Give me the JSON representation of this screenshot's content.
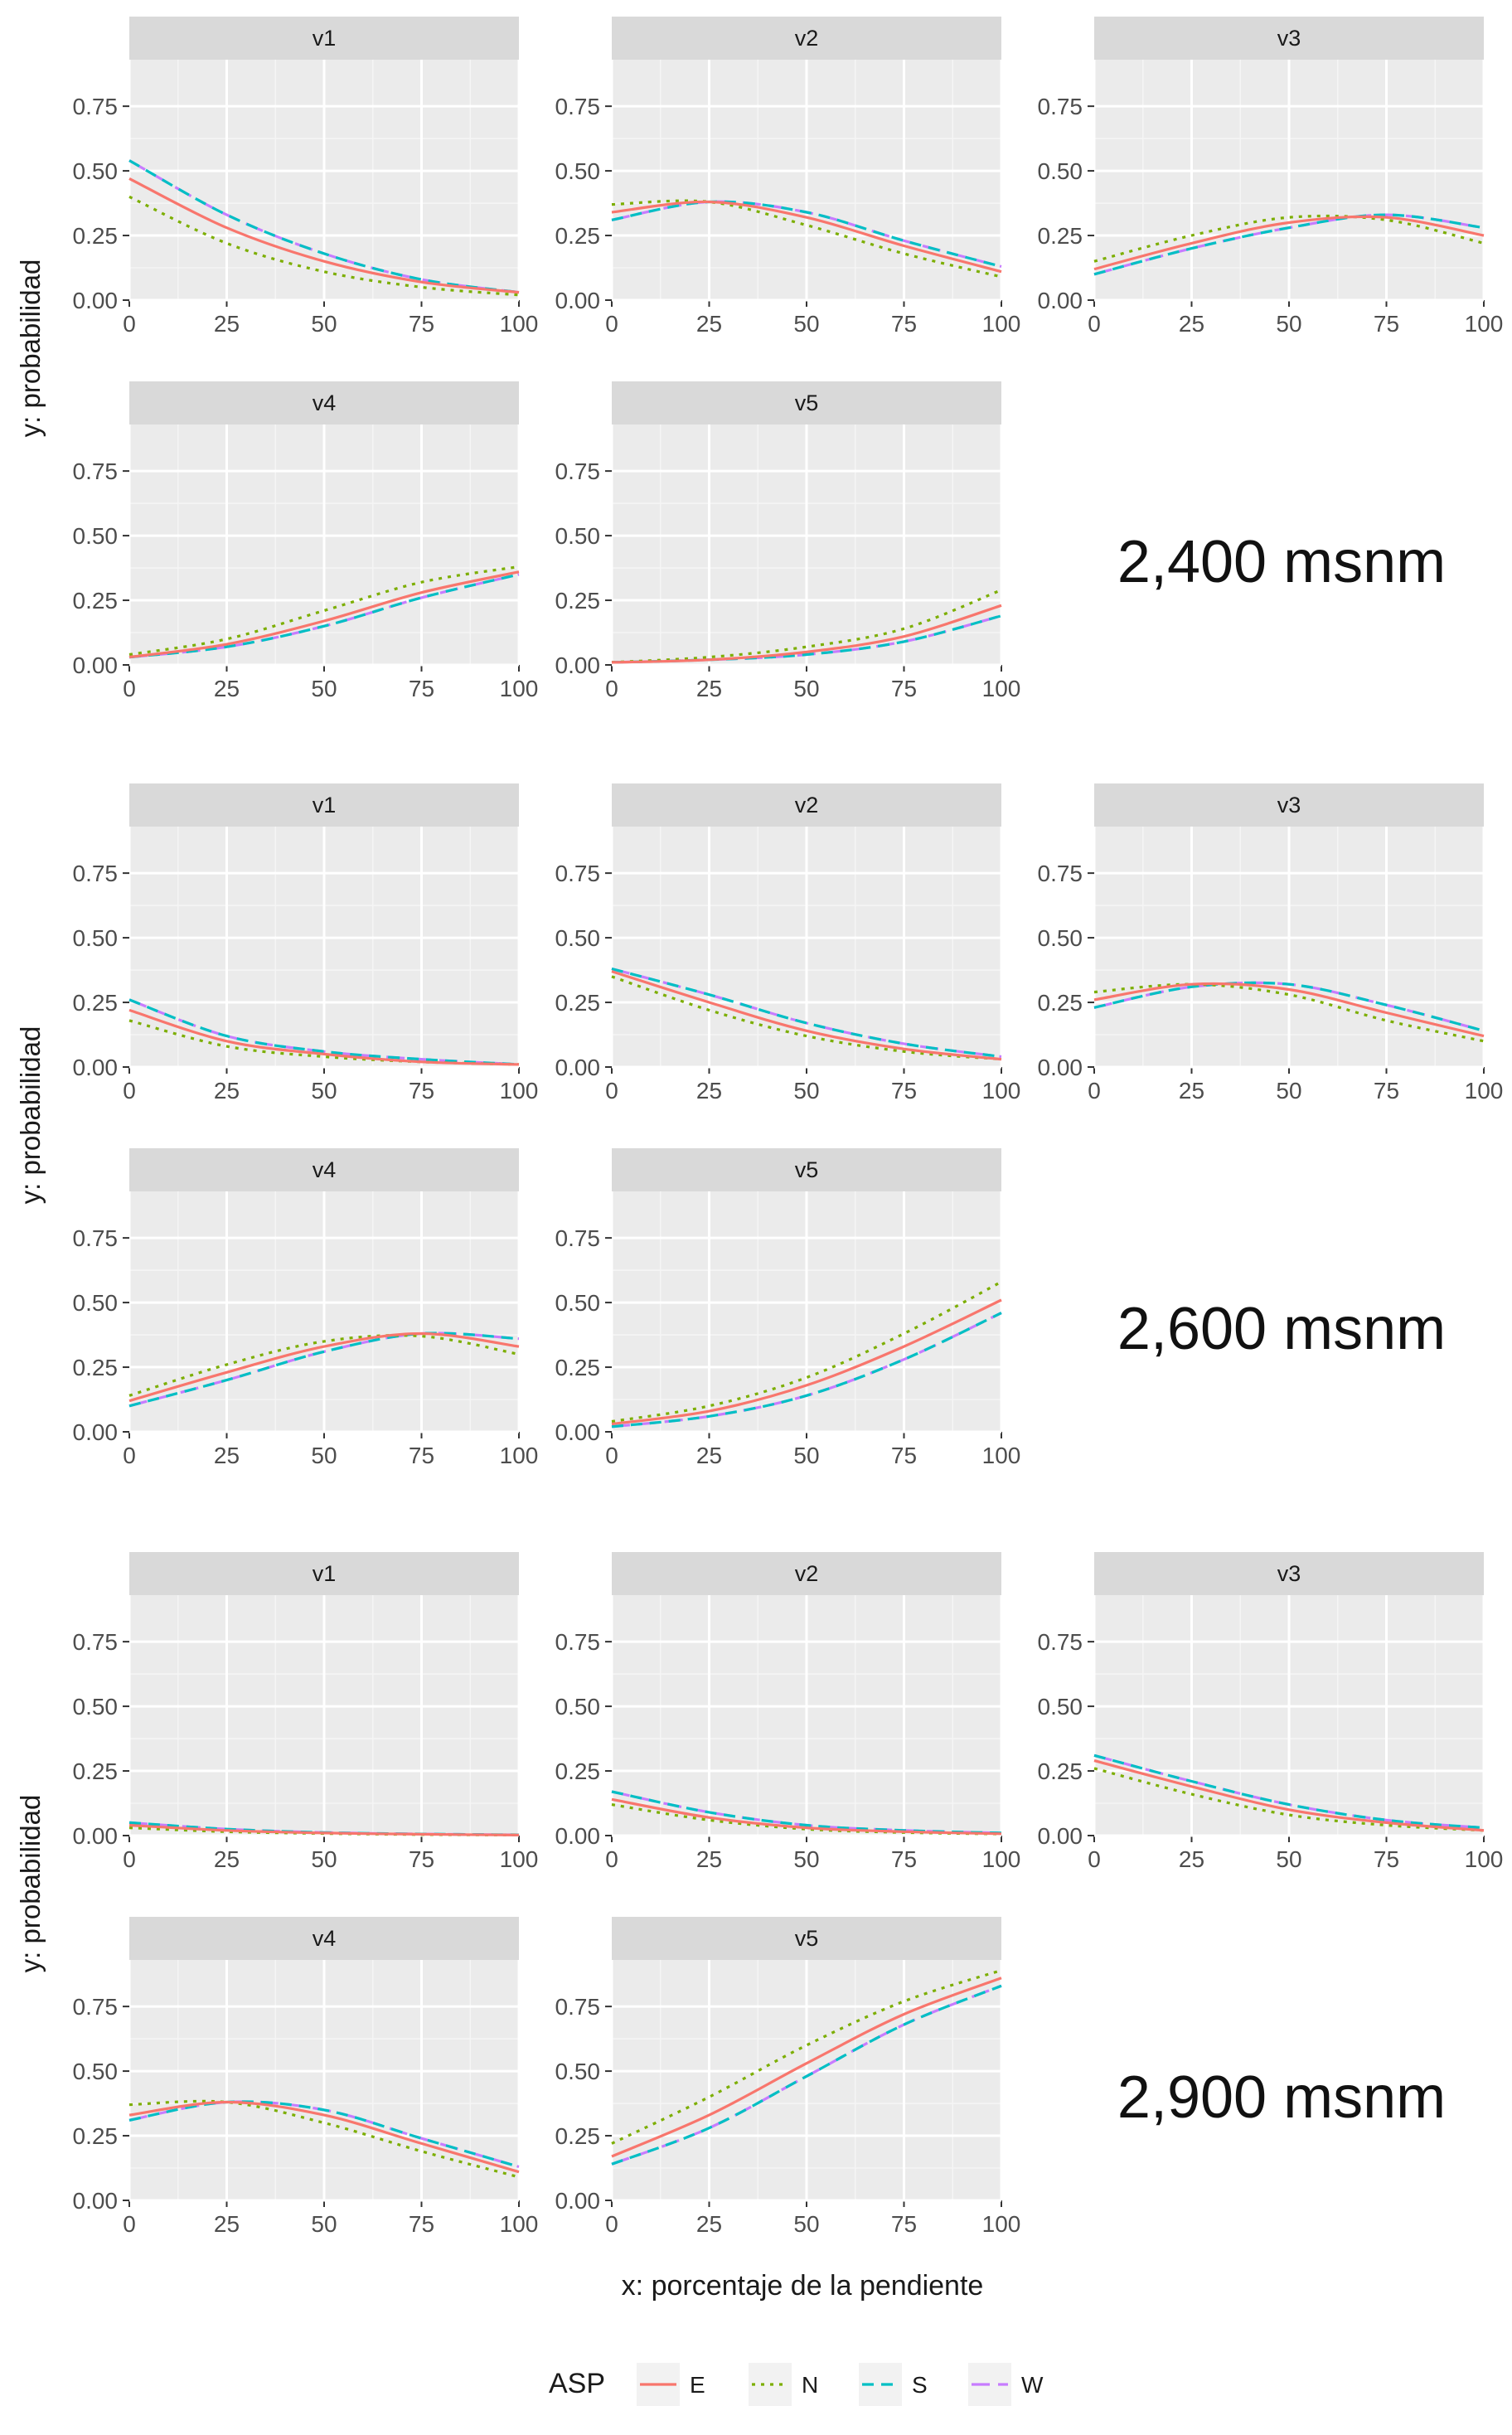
{
  "x_axis_label": "x: porcentaje de la pendiente",
  "y_axis_label": "y: probabilidad",
  "legend": {
    "title": "ASP",
    "entries": [
      {
        "key": "E",
        "color": "#F8766D",
        "dash": "solid"
      },
      {
        "key": "N",
        "color": "#7CAE00",
        "dash": "dotted"
      },
      {
        "key": "S",
        "color": "#00BFC4",
        "dash": "dashed"
      },
      {
        "key": "W",
        "color": "#C77CFF",
        "dash": "longdash"
      }
    ]
  },
  "colors": {
    "panel_background": "#EBEBEB",
    "strip_background": "#D9D9D9",
    "grid_major": "#FFFFFF",
    "E": "#F8766D",
    "N": "#7CAE00",
    "S": "#00BFC4",
    "W": "#C77CFF"
  },
  "chart_data": [
    {
      "type": "line",
      "group_label": "2,400 msnm",
      "xlabel": "x: porcentaje de la pendiente",
      "ylabel": "y: probabilidad",
      "xlim": [
        0,
        100
      ],
      "ylim": [
        0,
        0.93
      ],
      "x_ticks": [
        "0",
        "25",
        "50",
        "75",
        "100"
      ],
      "y_ticks": [
        "0.00",
        "0.25",
        "0.50",
        "0.75"
      ],
      "x": [
        0,
        25,
        50,
        75,
        100
      ],
      "panels": [
        {
          "facet": "v1",
          "series": [
            {
              "name": "E",
              "values": [
                0.47,
                0.28,
                0.15,
                0.07,
                0.03
              ]
            },
            {
              "name": "N",
              "values": [
                0.4,
                0.22,
                0.11,
                0.05,
                0.02
              ]
            },
            {
              "name": "S",
              "values": [
                0.54,
                0.33,
                0.18,
                0.08,
                0.03
              ]
            },
            {
              "name": "W",
              "values": [
                0.54,
                0.33,
                0.18,
                0.08,
                0.03
              ]
            }
          ]
        },
        {
          "facet": "v2",
          "series": [
            {
              "name": "E",
              "values": [
                0.34,
                0.38,
                0.32,
                0.21,
                0.11
              ]
            },
            {
              "name": "N",
              "values": [
                0.37,
                0.38,
                0.29,
                0.18,
                0.09
              ]
            },
            {
              "name": "S",
              "values": [
                0.31,
                0.38,
                0.34,
                0.23,
                0.13
              ]
            },
            {
              "name": "W",
              "values": [
                0.31,
                0.38,
                0.34,
                0.23,
                0.13
              ]
            }
          ]
        },
        {
          "facet": "v3",
          "series": [
            {
              "name": "E",
              "values": [
                0.12,
                0.22,
                0.3,
                0.32,
                0.25
              ]
            },
            {
              "name": "N",
              "values": [
                0.15,
                0.25,
                0.32,
                0.31,
                0.22
              ]
            },
            {
              "name": "S",
              "values": [
                0.1,
                0.2,
                0.28,
                0.33,
                0.28
              ]
            },
            {
              "name": "W",
              "values": [
                0.1,
                0.2,
                0.28,
                0.33,
                0.28
              ]
            }
          ]
        },
        {
          "facet": "v4",
          "series": [
            {
              "name": "E",
              "values": [
                0.03,
                0.08,
                0.17,
                0.28,
                0.36
              ]
            },
            {
              "name": "N",
              "values": [
                0.04,
                0.1,
                0.21,
                0.32,
                0.38
              ]
            },
            {
              "name": "S",
              "values": [
                0.03,
                0.07,
                0.15,
                0.26,
                0.35
              ]
            },
            {
              "name": "W",
              "values": [
                0.03,
                0.07,
                0.15,
                0.26,
                0.35
              ]
            }
          ]
        },
        {
          "facet": "v5",
          "series": [
            {
              "name": "E",
              "values": [
                0.01,
                0.02,
                0.05,
                0.11,
                0.23
              ]
            },
            {
              "name": "N",
              "values": [
                0.01,
                0.03,
                0.07,
                0.14,
                0.29
              ]
            },
            {
              "name": "S",
              "values": [
                0.01,
                0.02,
                0.04,
                0.09,
                0.19
              ]
            },
            {
              "name": "W",
              "values": [
                0.01,
                0.02,
                0.04,
                0.09,
                0.19
              ]
            }
          ]
        }
      ]
    },
    {
      "type": "line",
      "group_label": "2,600 msnm",
      "xlabel": "x: porcentaje de la pendiente",
      "ylabel": "y: probabilidad",
      "xlim": [
        0,
        100
      ],
      "ylim": [
        0,
        0.93
      ],
      "x_ticks": [
        "0",
        "25",
        "50",
        "75",
        "100"
      ],
      "y_ticks": [
        "0.00",
        "0.25",
        "0.50",
        "0.75"
      ],
      "x": [
        0,
        25,
        50,
        75,
        100
      ],
      "panels": [
        {
          "facet": "v1",
          "series": [
            {
              "name": "E",
              "values": [
                0.22,
                0.1,
                0.05,
                0.02,
                0.01
              ]
            },
            {
              "name": "N",
              "values": [
                0.18,
                0.08,
                0.04,
                0.02,
                0.01
              ]
            },
            {
              "name": "S",
              "values": [
                0.26,
                0.12,
                0.06,
                0.03,
                0.01
              ]
            },
            {
              "name": "W",
              "values": [
                0.26,
                0.12,
                0.06,
                0.03,
                0.01
              ]
            }
          ]
        },
        {
          "facet": "v2",
          "series": [
            {
              "name": "E",
              "values": [
                0.37,
                0.25,
                0.14,
                0.07,
                0.03
              ]
            },
            {
              "name": "N",
              "values": [
                0.35,
                0.22,
                0.12,
                0.06,
                0.03
              ]
            },
            {
              "name": "S",
              "values": [
                0.38,
                0.28,
                0.17,
                0.09,
                0.04
              ]
            },
            {
              "name": "W",
              "values": [
                0.38,
                0.28,
                0.17,
                0.09,
                0.04
              ]
            }
          ]
        },
        {
          "facet": "v3",
          "series": [
            {
              "name": "E",
              "values": [
                0.26,
                0.32,
                0.3,
                0.21,
                0.12
              ]
            },
            {
              "name": "N",
              "values": [
                0.29,
                0.32,
                0.28,
                0.18,
                0.1
              ]
            },
            {
              "name": "S",
              "values": [
                0.23,
                0.31,
                0.32,
                0.24,
                0.14
              ]
            },
            {
              "name": "W",
              "values": [
                0.23,
                0.31,
                0.32,
                0.24,
                0.14
              ]
            }
          ]
        },
        {
          "facet": "v4",
          "series": [
            {
              "name": "E",
              "values": [
                0.12,
                0.23,
                0.33,
                0.38,
                0.33
              ]
            },
            {
              "name": "N",
              "values": [
                0.14,
                0.26,
                0.35,
                0.37,
                0.3
              ]
            },
            {
              "name": "S",
              "values": [
                0.1,
                0.2,
                0.31,
                0.38,
                0.36
              ]
            },
            {
              "name": "W",
              "values": [
                0.1,
                0.2,
                0.31,
                0.38,
                0.36
              ]
            }
          ]
        },
        {
          "facet": "v5",
          "series": [
            {
              "name": "E",
              "values": [
                0.03,
                0.08,
                0.18,
                0.33,
                0.51
              ]
            },
            {
              "name": "N",
              "values": [
                0.04,
                0.1,
                0.21,
                0.38,
                0.58
              ]
            },
            {
              "name": "S",
              "values": [
                0.02,
                0.06,
                0.14,
                0.28,
                0.46
              ]
            },
            {
              "name": "W",
              "values": [
                0.02,
                0.06,
                0.14,
                0.28,
                0.46
              ]
            }
          ]
        }
      ]
    },
    {
      "type": "line",
      "group_label": "2,900 msnm",
      "xlabel": "x: porcentaje de la pendiente",
      "ylabel": "y: probabilidad",
      "xlim": [
        0,
        100
      ],
      "ylim": [
        0,
        0.93
      ],
      "x_ticks": [
        "0",
        "25",
        "50",
        "75",
        "100"
      ],
      "y_ticks": [
        "0.00",
        "0.25",
        "0.50",
        "0.75"
      ],
      "x": [
        0,
        25,
        50,
        75,
        100
      ],
      "panels": [
        {
          "facet": "v1",
          "series": [
            {
              "name": "E",
              "values": [
                0.04,
                0.02,
                0.01,
                0.005,
                0.002
              ]
            },
            {
              "name": "N",
              "values": [
                0.03,
                0.015,
                0.008,
                0.004,
                0.002
              ]
            },
            {
              "name": "S",
              "values": [
                0.05,
                0.025,
                0.012,
                0.006,
                0.003
              ]
            },
            {
              "name": "W",
              "values": [
                0.05,
                0.025,
                0.012,
                0.006,
                0.003
              ]
            }
          ]
        },
        {
          "facet": "v2",
          "series": [
            {
              "name": "E",
              "values": [
                0.14,
                0.07,
                0.03,
                0.015,
                0.007
              ]
            },
            {
              "name": "N",
              "values": [
                0.12,
                0.06,
                0.025,
                0.012,
                0.006
              ]
            },
            {
              "name": "S",
              "values": [
                0.17,
                0.09,
                0.04,
                0.02,
                0.01
              ]
            },
            {
              "name": "W",
              "values": [
                0.17,
                0.09,
                0.04,
                0.02,
                0.01
              ]
            }
          ]
        },
        {
          "facet": "v3",
          "series": [
            {
              "name": "E",
              "values": [
                0.29,
                0.19,
                0.1,
                0.05,
                0.02
              ]
            },
            {
              "name": "N",
              "values": [
                0.26,
                0.16,
                0.08,
                0.04,
                0.02
              ]
            },
            {
              "name": "S",
              "values": [
                0.31,
                0.21,
                0.12,
                0.06,
                0.03
              ]
            },
            {
              "name": "W",
              "values": [
                0.31,
                0.21,
                0.12,
                0.06,
                0.03
              ]
            }
          ]
        },
        {
          "facet": "v4",
          "series": [
            {
              "name": "E",
              "values": [
                0.33,
                0.38,
                0.33,
                0.22,
                0.11
              ]
            },
            {
              "name": "N",
              "values": [
                0.37,
                0.38,
                0.3,
                0.19,
                0.09
              ]
            },
            {
              "name": "S",
              "values": [
                0.31,
                0.38,
                0.35,
                0.24,
                0.13
              ]
            },
            {
              "name": "W",
              "values": [
                0.31,
                0.38,
                0.35,
                0.24,
                0.13
              ]
            }
          ]
        },
        {
          "facet": "v5",
          "series": [
            {
              "name": "E",
              "values": [
                0.17,
                0.33,
                0.53,
                0.72,
                0.86
              ]
            },
            {
              "name": "N",
              "values": [
                0.22,
                0.4,
                0.6,
                0.77,
                0.89
              ]
            },
            {
              "name": "S",
              "values": [
                0.14,
                0.28,
                0.48,
                0.68,
                0.83
              ]
            },
            {
              "name": "W",
              "values": [
                0.14,
                0.28,
                0.48,
                0.68,
                0.83
              ]
            }
          ]
        }
      ]
    }
  ]
}
